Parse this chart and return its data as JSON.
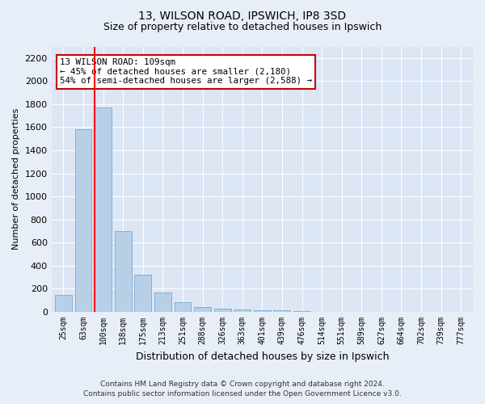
{
  "title1": "13, WILSON ROAD, IPSWICH, IP8 3SD",
  "title2": "Size of property relative to detached houses in Ipswich",
  "xlabel": "Distribution of detached houses by size in Ipswich",
  "ylabel": "Number of detached properties",
  "footer1": "Contains HM Land Registry data © Crown copyright and database right 2024.",
  "footer2": "Contains public sector information licensed under the Open Government Licence v3.0.",
  "categories": [
    "25sqm",
    "63sqm",
    "100sqm",
    "138sqm",
    "175sqm",
    "213sqm",
    "251sqm",
    "288sqm",
    "326sqm",
    "363sqm",
    "401sqm",
    "439sqm",
    "476sqm",
    "514sqm",
    "551sqm",
    "589sqm",
    "627sqm",
    "664sqm",
    "702sqm",
    "739sqm",
    "777sqm"
  ],
  "values": [
    150,
    1580,
    1770,
    700,
    325,
    165,
    85,
    45,
    30,
    20,
    15,
    12,
    10,
    3,
    2,
    1,
    1,
    0,
    0,
    0,
    0
  ],
  "bar_color": "#b8cfe8",
  "bar_edge_color": "#7aaad0",
  "highlight_index": 2,
  "ylim": [
    0,
    2300
  ],
  "yticks": [
    0,
    200,
    400,
    600,
    800,
    1000,
    1200,
    1400,
    1600,
    1800,
    2000,
    2200
  ],
  "annotation_line1": "13 WILSON ROAD: 109sqm",
  "annotation_line2": "← 45% of detached houses are smaller (2,180)",
  "annotation_line3": "54% of semi-detached houses are larger (2,588) →",
  "annotation_box_color": "#ffffff",
  "annotation_box_edge": "#cc0000",
  "bg_color": "#e8eef7",
  "plot_bg_color": "#dce6f4",
  "title1_fontsize": 10,
  "title2_fontsize": 9
}
